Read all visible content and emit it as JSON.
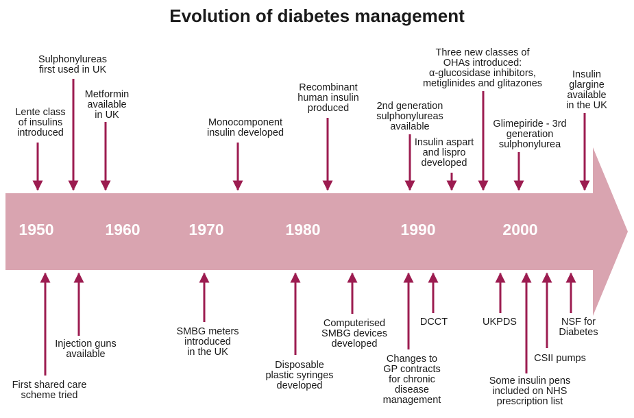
{
  "title": "Evolution of diabetes management",
  "colors": {
    "band": "#d9a4b0",
    "arrow": "#9c1c50",
    "year_text": "#ffffff"
  },
  "years": [
    "1950",
    "1960",
    "1970",
    "1980",
    "1990",
    "2000"
  ],
  "events_above": [
    "Lente class\nof insulins\nintroduced",
    "Sulphonylureas\nfirst used in UK",
    "Metformin\navailable\nin UK",
    "Monocomponent\ninsulin developed",
    "Recombinant\nhuman insulin\nproduced",
    "2nd generation\nsulphonylureas\navailable",
    "Insulin aspart\nand lispro\ndeveloped",
    "Three new classes of\nOHAs introduced:\nα-glucosidase inhibitors,\nmetiglinides and glitazones",
    "Glimepiride - 3rd\ngeneration\nsulphonylurea",
    "Insulin\nglargine\navailable\nin the UK"
  ],
  "events_below": [
    "First shared care\nscheme tried",
    "Injection guns\navailable",
    "SMBG meters\nintroduced\nin the UK",
    "Disposable\nplastic syringes\ndeveloped",
    "Computerised\nSMBG devices\ndeveloped",
    "Changes to\nGP contracts\nfor chronic\ndisease\nmanagement",
    "DCCT",
    "UKPDS",
    "Some insulin pens\nincluded on NHS\nprescription list",
    "CSII pumps",
    "NSF for\nDiabetes"
  ]
}
